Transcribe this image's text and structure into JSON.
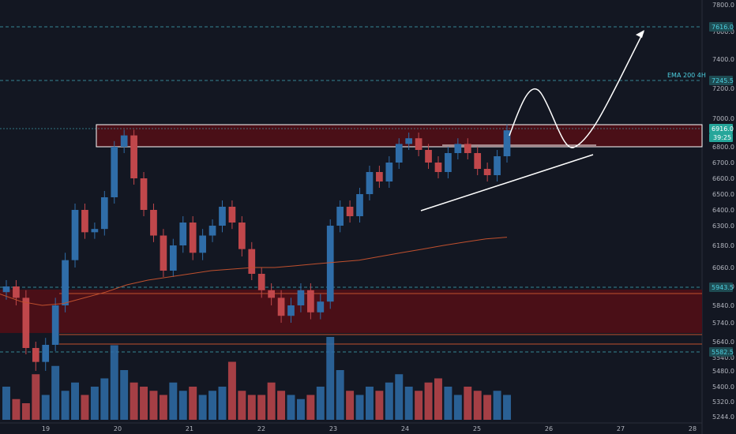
{
  "chart_data": {
    "type": "candlestick",
    "title": "",
    "xlabel": "",
    "ylabel": "",
    "ylim": [
      5244,
      7800
    ],
    "x_ticks": [
      "19",
      "20",
      "21",
      "22",
      "23",
      "24",
      "25",
      "26",
      "27",
      "28"
    ],
    "y_ticks": [
      "7800.0",
      "7600.0",
      "7400.0",
      "7200.0",
      "7000.0",
      "6800.0",
      "6700.0",
      "6600.0",
      "6500.0",
      "6400.0",
      "6300.0",
      "6180.0",
      "6060.0",
      "5940.0",
      "5840.0",
      "5740.0",
      "5640.0",
      "5540.0",
      "5480.0",
      "5400.0",
      "5320.0",
      "5244.0"
    ],
    "price_close": [
      5940,
      5880,
      5600,
      5520,
      5620,
      5840,
      6100,
      6400,
      6260,
      6280,
      6480,
      6800,
      6880,
      6600,
      6400,
      6240,
      6040,
      6180,
      6320,
      6140,
      6240,
      6300,
      6420,
      6320,
      6160,
      6020,
      5920,
      5880,
      5780,
      5840,
      5920,
      5800,
      5860,
      6300,
      6420,
      6360,
      6500,
      6640,
      6580,
      6700,
      6820,
      6860,
      6780,
      6700,
      6640,
      6760,
      6820,
      6760,
      6660,
      6620,
      6740,
      6916
    ],
    "volume": [
      40,
      25,
      20,
      55,
      30,
      65,
      35,
      45,
      30,
      40,
      50,
      90,
      60,
      45,
      40,
      35,
      30,
      45,
      35,
      40,
      30,
      35,
      40,
      70,
      35,
      30,
      30,
      45,
      35,
      30,
      25,
      30,
      40,
      100,
      60,
      35,
      30,
      40,
      35,
      45,
      55,
      40,
      35,
      45,
      50,
      40,
      30,
      40,
      35,
      30,
      35,
      30
    ],
    "ema_line": [
      5900,
      5860,
      5840,
      5850,
      5880,
      5910,
      5950,
      5980,
      6000,
      6020,
      6040,
      6050,
      6060,
      6060,
      6070,
      6080,
      6090,
      6100,
      6120,
      6140,
      6160,
      6180,
      6200,
      6220,
      6230
    ],
    "annotations": {
      "ema_label": "EMA 200 4H",
      "price_labels": [
        {
          "text": "7616.0",
          "color": "#4dd0e1"
        },
        {
          "text": "7245.5",
          "color": "#4dd0e1"
        },
        {
          "text": "6916.0",
          "color": "#26a69a"
        },
        {
          "text": "39:25",
          "color": "#26a69a"
        },
        {
          "text": "5943.5",
          "color": "#4dd0e1"
        },
        {
          "text": "5582.5",
          "color": "#4dd0e1"
        }
      ]
    },
    "colors": {
      "up": "#2f6da8",
      "down": "#c0474b",
      "ema": "#c0502e",
      "zone": "#4a0f17",
      "background": "#131722"
    }
  }
}
